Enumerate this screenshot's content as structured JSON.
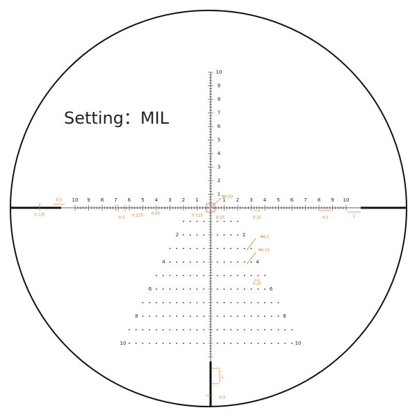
{
  "title": "Setting：MIL",
  "scale": {
    "left": [
      "10",
      "9",
      "8",
      "7",
      "6",
      "5",
      "4",
      "3",
      "2",
      "1"
    ],
    "right": [
      "1",
      "2",
      "3",
      "4",
      "5",
      "6",
      "7",
      "8",
      "9",
      "10"
    ],
    "up": [
      "1",
      "2",
      "3",
      "4",
      "5",
      "6",
      "7",
      "8",
      "9",
      "10"
    ],
    "down_left": [
      "2",
      "4",
      "6",
      "8",
      "10"
    ],
    "down_right": [
      "2",
      "4",
      "6",
      "8",
      "10"
    ]
  },
  "annotations": [
    "0.5",
    "0.125",
    "0.5",
    "0.125",
    "0.05",
    "0.125",
    "0.25",
    "Φ0.03",
    "0.25",
    "0.2",
    "1",
    "Φ0.1",
    "Φ0.01",
    "0.25",
    "1",
    "0.5"
  ]
}
